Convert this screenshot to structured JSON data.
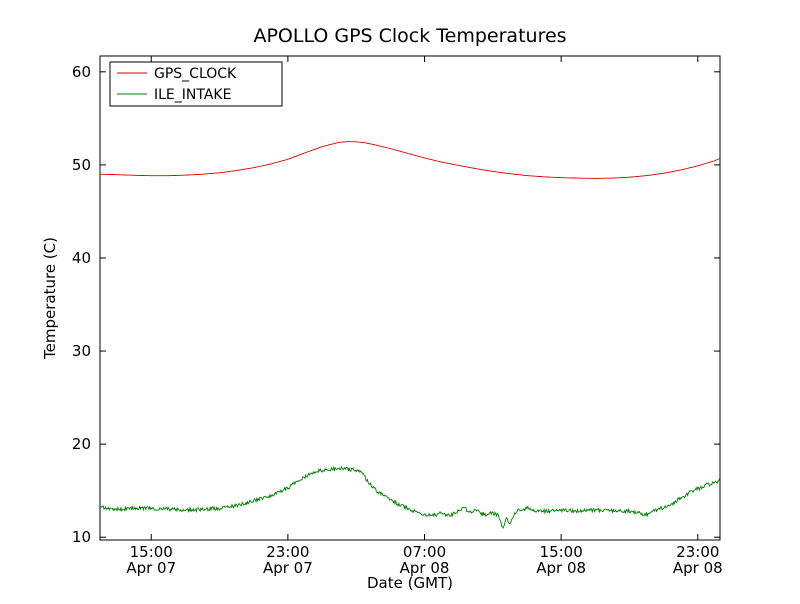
{
  "chart_data": {
    "type": "line",
    "title": "APOLLO GPS Clock Temperatures",
    "xlabel": "Date (GMT)",
    "ylabel": "Temperature (C)",
    "x_axis_unit": "hours since Apr 07 00:00 GMT",
    "xlim": [
      12,
      48.3
    ],
    "ylim": [
      9.7,
      61.7
    ],
    "yticks": [
      10,
      20,
      30,
      40,
      50,
      60
    ],
    "xticks": [
      {
        "pos": 15,
        "time": "15:00",
        "date": "Apr 07"
      },
      {
        "pos": 23,
        "time": "23:00",
        "date": "Apr 07"
      },
      {
        "pos": 31,
        "time": "07:00",
        "date": "Apr 08"
      },
      {
        "pos": 39,
        "time": "15:00",
        "date": "Apr 08"
      },
      {
        "pos": 47,
        "time": "23:00",
        "date": "Apr 08"
      }
    ],
    "grid": false,
    "legend": {
      "position": "upper left"
    },
    "series": [
      {
        "name": "GPS_CLOCK",
        "color": "#e00000",
        "noise": 0,
        "points": [
          [
            12,
            49.0
          ],
          [
            13,
            48.95
          ],
          [
            14,
            48.88
          ],
          [
            15,
            48.84
          ],
          [
            16,
            48.84
          ],
          [
            17,
            48.9
          ],
          [
            18,
            49.0
          ],
          [
            19,
            49.15
          ],
          [
            20,
            49.4
          ],
          [
            21,
            49.7
          ],
          [
            22,
            50.1
          ],
          [
            23,
            50.6
          ],
          [
            24,
            51.3
          ],
          [
            25,
            51.95
          ],
          [
            25.5,
            52.2
          ],
          [
            26,
            52.42
          ],
          [
            26.5,
            52.5
          ],
          [
            27,
            52.48
          ],
          [
            27.5,
            52.38
          ],
          [
            28,
            52.2
          ],
          [
            29,
            51.75
          ],
          [
            30,
            51.25
          ],
          [
            31,
            50.75
          ],
          [
            32,
            50.3
          ],
          [
            33,
            49.95
          ],
          [
            34,
            49.6
          ],
          [
            35,
            49.3
          ],
          [
            36,
            49.05
          ],
          [
            37,
            48.85
          ],
          [
            38,
            48.72
          ],
          [
            39,
            48.63
          ],
          [
            40,
            48.58
          ],
          [
            41,
            48.55
          ],
          [
            42,
            48.58
          ],
          [
            43,
            48.68
          ],
          [
            44,
            48.85
          ],
          [
            45,
            49.1
          ],
          [
            46,
            49.45
          ],
          [
            47,
            49.9
          ],
          [
            48,
            50.45
          ],
          [
            48.3,
            50.7
          ]
        ]
      },
      {
        "name": "ILE_INTAKE",
        "color": "#007f00",
        "noise": 0.2,
        "points": [
          [
            12,
            13.3
          ],
          [
            12.5,
            13.1
          ],
          [
            13,
            13.0
          ],
          [
            14,
            13.1
          ],
          [
            15,
            13.1
          ],
          [
            16,
            13.0
          ],
          [
            17,
            12.9
          ],
          [
            18,
            13.0
          ],
          [
            19,
            13.1
          ],
          [
            20,
            13.4
          ],
          [
            21,
            13.9
          ],
          [
            22,
            14.5
          ],
          [
            23,
            15.3
          ],
          [
            23.5,
            15.9
          ],
          [
            24,
            16.5
          ],
          [
            24.5,
            17.0
          ],
          [
            25,
            17.2
          ],
          [
            25.5,
            17.3
          ],
          [
            26,
            17.4
          ],
          [
            26.5,
            17.3
          ],
          [
            27,
            17.2
          ],
          [
            27.3,
            16.9
          ],
          [
            27.7,
            16.0
          ],
          [
            28,
            15.3
          ],
          [
            28.5,
            14.6
          ],
          [
            29,
            14.0
          ],
          [
            29.5,
            13.5
          ],
          [
            30,
            13.1
          ],
          [
            30.5,
            12.7
          ],
          [
            31,
            12.4
          ],
          [
            31.5,
            12.3
          ],
          [
            32,
            12.6
          ],
          [
            32.5,
            12.3
          ],
          [
            33,
            12.9
          ],
          [
            33.3,
            13.2
          ],
          [
            33.6,
            12.7
          ],
          [
            34,
            12.9
          ],
          [
            34.5,
            12.4
          ],
          [
            35,
            12.6
          ],
          [
            35.3,
            12.4
          ],
          [
            35.6,
            10.9
          ],
          [
            35.8,
            12.1
          ],
          [
            36,
            11.4
          ],
          [
            36.2,
            12.3
          ],
          [
            36.5,
            12.9
          ],
          [
            37,
            13.1
          ],
          [
            37.5,
            12.9
          ],
          [
            38,
            12.8
          ],
          [
            39,
            12.9
          ],
          [
            40,
            12.8
          ],
          [
            41,
            12.9
          ],
          [
            42,
            12.8
          ],
          [
            43,
            12.8
          ],
          [
            43.5,
            12.6
          ],
          [
            44,
            12.4
          ],
          [
            44.5,
            12.9
          ],
          [
            45,
            13.2
          ],
          [
            45.5,
            13.6
          ],
          [
            46,
            14.2
          ],
          [
            46.5,
            14.8
          ],
          [
            47,
            15.2
          ],
          [
            47.5,
            15.6
          ],
          [
            48,
            15.9
          ],
          [
            48.3,
            16.1
          ]
        ]
      }
    ]
  }
}
